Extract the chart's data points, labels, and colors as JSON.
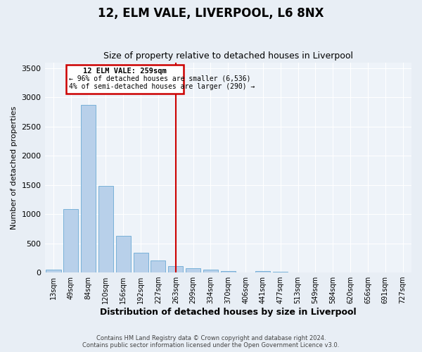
{
  "title": "12, ELM VALE, LIVERPOOL, L6 8NX",
  "subtitle": "Size of property relative to detached houses in Liverpool",
  "xlabel": "Distribution of detached houses by size in Liverpool",
  "ylabel": "Number of detached properties",
  "bar_labels": [
    "13sqm",
    "49sqm",
    "84sqm",
    "120sqm",
    "156sqm",
    "192sqm",
    "227sqm",
    "263sqm",
    "299sqm",
    "334sqm",
    "370sqm",
    "406sqm",
    "441sqm",
    "477sqm",
    "513sqm",
    "549sqm",
    "584sqm",
    "620sqm",
    "656sqm",
    "691sqm",
    "727sqm"
  ],
  "bar_values": [
    50,
    1090,
    2870,
    1480,
    630,
    335,
    205,
    105,
    70,
    50,
    30,
    0,
    20,
    15,
    0,
    0,
    0,
    0,
    0,
    0,
    0
  ],
  "bar_color": "#b8d0ea",
  "bar_edge_color": "#6aaad4",
  "vline_x_index": 7,
  "vline_color": "#cc0000",
  "annotation_line1": "12 ELM VALE: 259sqm",
  "annotation_line2": "← 96% of detached houses are smaller (6,536)",
  "annotation_line3": "4% of semi-detached houses are larger (290) →",
  "box_color": "#cc0000",
  "ylim": [
    0,
    3600
  ],
  "yticks": [
    0,
    500,
    1000,
    1500,
    2000,
    2500,
    3000,
    3500
  ],
  "footer1": "Contains HM Land Registry data © Crown copyright and database right 2024.",
  "footer2": "Contains public sector information licensed under the Open Government Licence v3.0.",
  "bg_color": "#e8eef5",
  "plot_bg_color": "#eef3f9",
  "grid_color": "#ffffff",
  "title_fontsize": 12,
  "subtitle_fontsize": 9,
  "xlabel_fontsize": 9,
  "ylabel_fontsize": 8,
  "tick_fontsize": 7,
  "footer_fontsize": 6
}
